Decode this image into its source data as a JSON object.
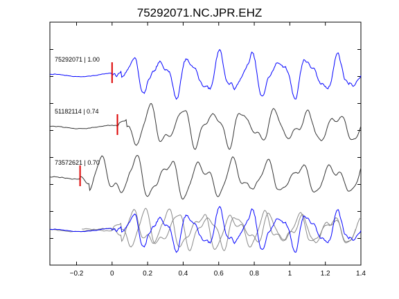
{
  "chart_data": {
    "type": "line",
    "title": "75292071.NC.JPR.EHZ",
    "xlabel": "",
    "ylabel": "",
    "xlim": [
      -0.35,
      1.4
    ],
    "xticks": [
      -0.2,
      0,
      0.2,
      0.4,
      0.6,
      0.8,
      1,
      1.2,
      1.4
    ],
    "xtick_labels": [
      "−0.2",
      "0",
      "0.2",
      "0.4",
      "0.6",
      "0.8",
      "1",
      "1.2",
      "1.4"
    ],
    "grid": false,
    "legend": "none",
    "colors": {
      "reference": "#0000ff",
      "matched": "#333333",
      "overlay_matched": "#888888",
      "pick": "#dd0000",
      "axes": "#000000"
    },
    "traces": [
      {
        "label": "75292071 | 1.00",
        "event_id": "75292071",
        "correlation": 1.0,
        "pick_time": 0.0,
        "color_key": "reference"
      },
      {
        "label": "51182114 | 0.74",
        "event_id": "51182114",
        "correlation": 0.74,
        "pick_time": 0.03,
        "color_key": "matched"
      },
      {
        "label": "73572621 | 0.70",
        "event_id": "73572621",
        "correlation": 0.7,
        "pick_time": -0.18,
        "color_key": "matched"
      }
    ],
    "overlay": {
      "description_visible": false
    }
  }
}
